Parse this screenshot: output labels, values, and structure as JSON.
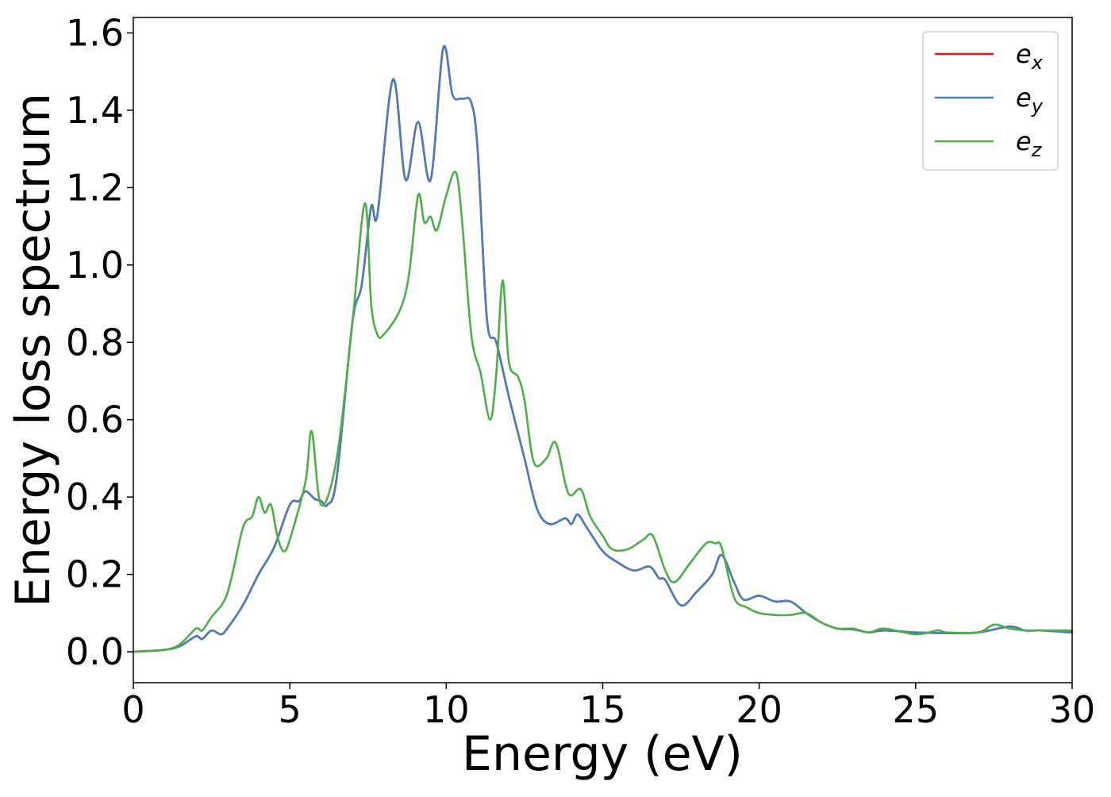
{
  "chart_data": {
    "type": "line",
    "xlabel": "Energy (eV)",
    "ylabel": "Energy loss spectrum",
    "xlim": [
      0,
      30
    ],
    "ylim": [
      -0.08,
      1.64
    ],
    "xticks": [
      0,
      5,
      10,
      15,
      20,
      25,
      30
    ],
    "xtick_labels": [
      "0",
      "5",
      "10",
      "15",
      "20",
      "25",
      "30"
    ],
    "yticks": [
      0.0,
      0.2,
      0.4,
      0.6,
      0.8,
      1.0,
      1.2,
      1.4,
      1.6
    ],
    "ytick_labels": [
      "0.0",
      "0.2",
      "0.4",
      "0.6",
      "0.8",
      "1.0",
      "1.2",
      "1.4",
      "1.6"
    ],
    "grid": false,
    "legend_position": "top-right",
    "series": [
      {
        "name": "e_x",
        "legend_base": "e",
        "legend_sub": "x",
        "color": "#e41a1c",
        "points": [
          [
            0,
            0
          ],
          [
            1,
            0.005
          ],
          [
            1.5,
            0.015
          ],
          [
            2,
            0.04
          ],
          [
            2.2,
            0.033
          ],
          [
            2.5,
            0.055
          ],
          [
            2.8,
            0.045
          ],
          [
            3,
            0.06
          ],
          [
            3.5,
            0.12
          ],
          [
            4,
            0.2
          ],
          [
            4.5,
            0.27
          ],
          [
            5,
            0.38
          ],
          [
            5.3,
            0.39
          ],
          [
            5.5,
            0.415
          ],
          [
            5.8,
            0.395
          ],
          [
            6,
            0.39
          ],
          [
            6.2,
            0.38
          ],
          [
            6.5,
            0.45
          ],
          [
            7,
            0.85
          ],
          [
            7.3,
            0.95
          ],
          [
            7.6,
            1.15
          ],
          [
            7.8,
            1.13
          ],
          [
            8.3,
            1.48
          ],
          [
            8.7,
            1.22
          ],
          [
            9.1,
            1.37
          ],
          [
            9.5,
            1.22
          ],
          [
            9.9,
            1.56
          ],
          [
            10.2,
            1.44
          ],
          [
            10.5,
            1.43
          ],
          [
            10.8,
            1.42
          ],
          [
            11,
            1.3
          ],
          [
            11.3,
            0.86
          ],
          [
            11.6,
            0.8
          ],
          [
            12,
            0.66
          ],
          [
            12.5,
            0.5
          ],
          [
            12.9,
            0.37
          ],
          [
            13.3,
            0.33
          ],
          [
            13.8,
            0.345
          ],
          [
            14,
            0.33
          ],
          [
            14.2,
            0.355
          ],
          [
            14.5,
            0.32
          ],
          [
            15,
            0.26
          ],
          [
            15.5,
            0.23
          ],
          [
            16,
            0.21
          ],
          [
            16.5,
            0.22
          ],
          [
            16.8,
            0.19
          ],
          [
            17,
            0.185
          ],
          [
            17.5,
            0.12
          ],
          [
            18,
            0.155
          ],
          [
            18.5,
            0.2
          ],
          [
            18.8,
            0.25
          ],
          [
            19.2,
            0.18
          ],
          [
            19.5,
            0.135
          ],
          [
            20,
            0.145
          ],
          [
            20.5,
            0.13
          ],
          [
            21,
            0.13
          ],
          [
            21.5,
            0.1
          ],
          [
            22,
            0.075
          ],
          [
            22.5,
            0.06
          ],
          [
            23,
            0.058
          ],
          [
            23.5,
            0.05
          ],
          [
            24,
            0.055
          ],
          [
            25,
            0.05
          ],
          [
            26,
            0.048
          ],
          [
            27,
            0.05
          ],
          [
            28,
            0.065
          ],
          [
            28.5,
            0.055
          ],
          [
            29,
            0.055
          ],
          [
            30,
            0.05
          ]
        ]
      },
      {
        "name": "e_y",
        "legend_base": "e",
        "legend_sub": "y",
        "color": "#4a7eb8",
        "points": [
          [
            0,
            0
          ],
          [
            1,
            0.005
          ],
          [
            1.5,
            0.015
          ],
          [
            2,
            0.04
          ],
          [
            2.2,
            0.033
          ],
          [
            2.5,
            0.055
          ],
          [
            2.8,
            0.045
          ],
          [
            3,
            0.06
          ],
          [
            3.5,
            0.12
          ],
          [
            4,
            0.2
          ],
          [
            4.5,
            0.27
          ],
          [
            5,
            0.38
          ],
          [
            5.3,
            0.39
          ],
          [
            5.5,
            0.415
          ],
          [
            5.8,
            0.395
          ],
          [
            6,
            0.39
          ],
          [
            6.2,
            0.38
          ],
          [
            6.5,
            0.45
          ],
          [
            7,
            0.85
          ],
          [
            7.3,
            0.95
          ],
          [
            7.6,
            1.15
          ],
          [
            7.8,
            1.13
          ],
          [
            8.3,
            1.48
          ],
          [
            8.7,
            1.22
          ],
          [
            9.1,
            1.37
          ],
          [
            9.5,
            1.22
          ],
          [
            9.9,
            1.56
          ],
          [
            10.2,
            1.44
          ],
          [
            10.5,
            1.43
          ],
          [
            10.8,
            1.42
          ],
          [
            11,
            1.3
          ],
          [
            11.3,
            0.86
          ],
          [
            11.6,
            0.8
          ],
          [
            12,
            0.66
          ],
          [
            12.5,
            0.5
          ],
          [
            12.9,
            0.37
          ],
          [
            13.3,
            0.33
          ],
          [
            13.8,
            0.345
          ],
          [
            14,
            0.33
          ],
          [
            14.2,
            0.355
          ],
          [
            14.5,
            0.32
          ],
          [
            15,
            0.26
          ],
          [
            15.5,
            0.23
          ],
          [
            16,
            0.21
          ],
          [
            16.5,
            0.22
          ],
          [
            16.8,
            0.19
          ],
          [
            17,
            0.185
          ],
          [
            17.5,
            0.12
          ],
          [
            18,
            0.155
          ],
          [
            18.5,
            0.2
          ],
          [
            18.8,
            0.25
          ],
          [
            19.2,
            0.18
          ],
          [
            19.5,
            0.135
          ],
          [
            20,
            0.145
          ],
          [
            20.5,
            0.13
          ],
          [
            21,
            0.13
          ],
          [
            21.5,
            0.1
          ],
          [
            22,
            0.075
          ],
          [
            22.5,
            0.06
          ],
          [
            23,
            0.058
          ],
          [
            23.5,
            0.05
          ],
          [
            24,
            0.055
          ],
          [
            25,
            0.05
          ],
          [
            26,
            0.048
          ],
          [
            27,
            0.05
          ],
          [
            28,
            0.065
          ],
          [
            28.5,
            0.055
          ],
          [
            29,
            0.055
          ],
          [
            30,
            0.05
          ]
        ]
      },
      {
        "name": "e_z",
        "legend_base": "e",
        "legend_sub": "z",
        "color": "#4daf4a",
        "points": [
          [
            0,
            0
          ],
          [
            1,
            0.005
          ],
          [
            1.5,
            0.02
          ],
          [
            2,
            0.06
          ],
          [
            2.2,
            0.055
          ],
          [
            2.5,
            0.09
          ],
          [
            3,
            0.15
          ],
          [
            3.5,
            0.32
          ],
          [
            3.8,
            0.35
          ],
          [
            4,
            0.4
          ],
          [
            4.2,
            0.36
          ],
          [
            4.4,
            0.38
          ],
          [
            4.6,
            0.3
          ],
          [
            4.8,
            0.26
          ],
          [
            5,
            0.29
          ],
          [
            5.5,
            0.44
          ],
          [
            5.7,
            0.57
          ],
          [
            6,
            0.38
          ],
          [
            6.5,
            0.5
          ],
          [
            7,
            0.85
          ],
          [
            7.4,
            1.16
          ],
          [
            7.6,
            0.9
          ],
          [
            7.8,
            0.82
          ],
          [
            8,
            0.82
          ],
          [
            8.5,
            0.88
          ],
          [
            8.8,
            0.97
          ],
          [
            9.1,
            1.18
          ],
          [
            9.3,
            1.11
          ],
          [
            9.5,
            1.125
          ],
          [
            9.7,
            1.09
          ],
          [
            10,
            1.18
          ],
          [
            10.3,
            1.24
          ],
          [
            10.5,
            1.12
          ],
          [
            10.8,
            0.82
          ],
          [
            11.1,
            0.72
          ],
          [
            11.4,
            0.6
          ],
          [
            11.6,
            0.72
          ],
          [
            11.8,
            0.96
          ],
          [
            12,
            0.75
          ],
          [
            12.3,
            0.71
          ],
          [
            12.5,
            0.65
          ],
          [
            12.8,
            0.49
          ],
          [
            13.2,
            0.5
          ],
          [
            13.5,
            0.54
          ],
          [
            13.9,
            0.41
          ],
          [
            14.3,
            0.42
          ],
          [
            14.6,
            0.35
          ],
          [
            15,
            0.3
          ],
          [
            15.3,
            0.265
          ],
          [
            15.8,
            0.265
          ],
          [
            16.3,
            0.29
          ],
          [
            16.6,
            0.3
          ],
          [
            17,
            0.21
          ],
          [
            17.3,
            0.18
          ],
          [
            17.8,
            0.23
          ],
          [
            18.3,
            0.28
          ],
          [
            18.6,
            0.28
          ],
          [
            18.8,
            0.27
          ],
          [
            19.2,
            0.14
          ],
          [
            19.6,
            0.115
          ],
          [
            20,
            0.1
          ],
          [
            20.5,
            0.095
          ],
          [
            21,
            0.095
          ],
          [
            21.5,
            0.1
          ],
          [
            22,
            0.075
          ],
          [
            22.5,
            0.06
          ],
          [
            23,
            0.06
          ],
          [
            23.5,
            0.05
          ],
          [
            24,
            0.06
          ],
          [
            25,
            0.045
          ],
          [
            25.7,
            0.055
          ],
          [
            26,
            0.05
          ],
          [
            27,
            0.05
          ],
          [
            27.5,
            0.07
          ],
          [
            28,
            0.06
          ],
          [
            28.5,
            0.055
          ],
          [
            29,
            0.055
          ],
          [
            30,
            0.055
          ]
        ]
      }
    ]
  }
}
